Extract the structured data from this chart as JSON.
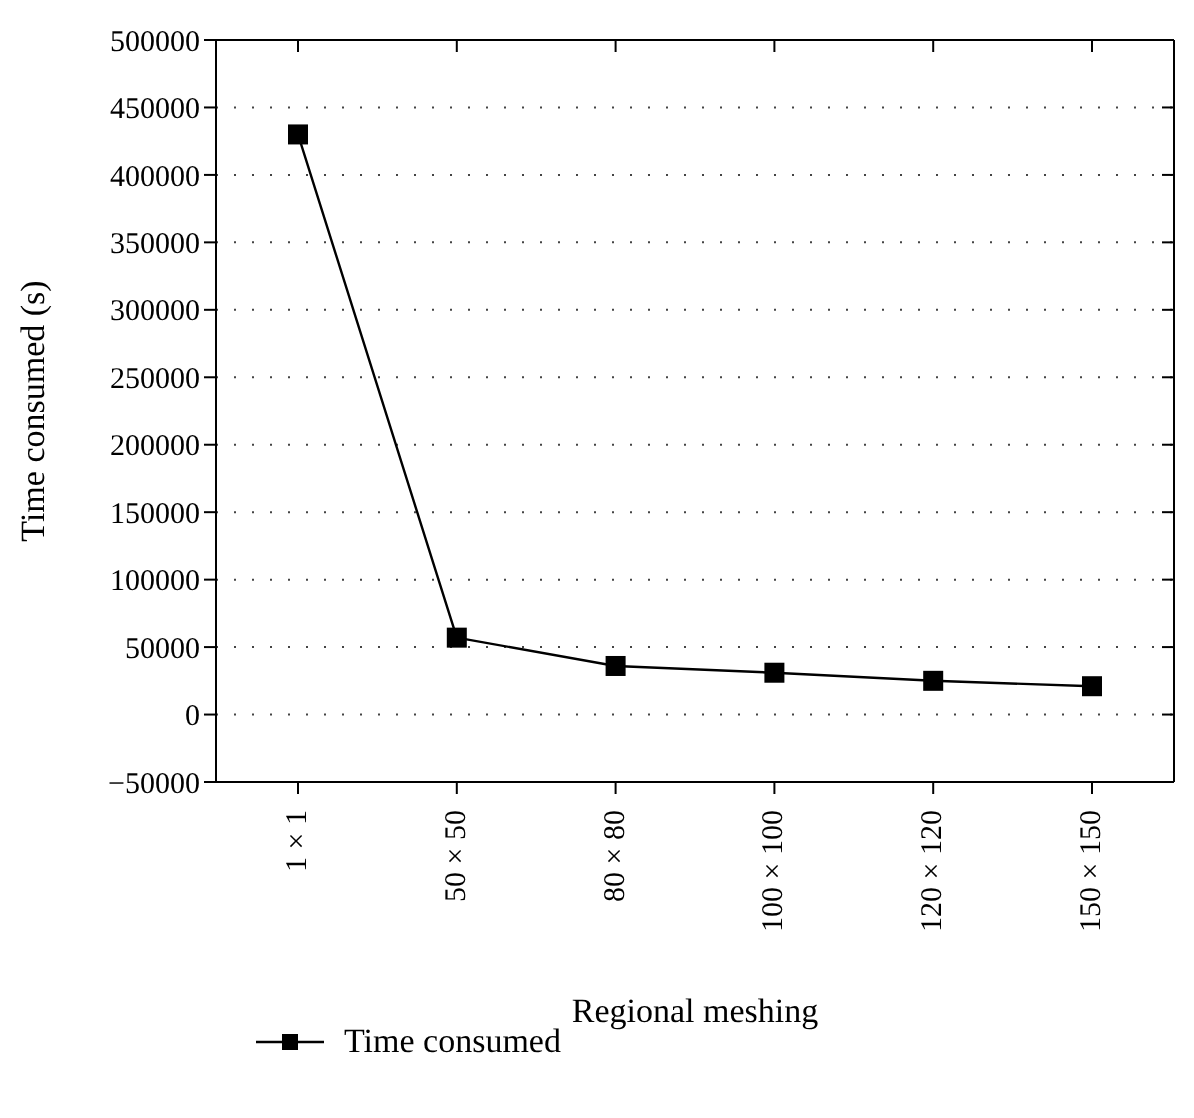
{
  "chart_data": {
    "type": "line",
    "xlabel": "Regional meshing",
    "ylabel": "Time consumed (s)",
    "categories": [
      "1 × 1",
      "50 × 50",
      "80 × 80",
      "100 × 100",
      "120 × 120",
      "150 × 150"
    ],
    "series": [
      {
        "name": "Time consumed",
        "color": "#000000",
        "values": [
          430000,
          57000,
          36000,
          31000,
          25000,
          21000
        ]
      }
    ],
    "ylim": [
      -50000,
      500000
    ],
    "yticks": [
      -50000,
      0,
      50000,
      100000,
      150000,
      200000,
      250000,
      300000,
      350000,
      400000,
      450000,
      500000
    ],
    "grid": "y",
    "legend": "bottom left",
    "marker": "square",
    "line_style": "solid"
  }
}
